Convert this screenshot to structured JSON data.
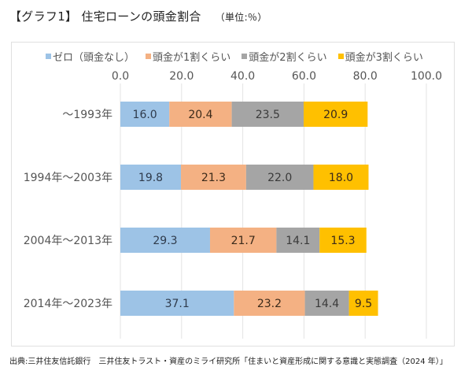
{
  "header": {
    "title": "【グラフ1】 住宅ローンの頭金割合",
    "unit": "（単位:％）"
  },
  "source": "出典:三井住友信託銀行　三井住友トラスト・資産のミライ研究所「住まいと資産形成に関する意識と実態調査（2024 年）」",
  "chart_data": {
    "type": "bar",
    "orientation": "horizontal",
    "stacked": true,
    "title": "【グラフ1】 住宅ローンの頭金割合",
    "unit_label": "（単位:％）",
    "xlabel": "",
    "ylabel": "",
    "xlim": [
      0,
      100
    ],
    "xticks": [
      0,
      20,
      40,
      60,
      80,
      100
    ],
    "xtick_labels": [
      "0.0",
      "20.0",
      "40.0",
      "60.0",
      "80.0",
      "100.0"
    ],
    "grid": true,
    "legend_position": "top",
    "categories": [
      "～1993年",
      "1994年～2003年",
      "2004年～2013年",
      "2014年～2023年"
    ],
    "series": [
      {
        "name": "ゼロ（頭金なし）",
        "color": "#9dc3e6",
        "values": [
          16.0,
          19.8,
          29.3,
          37.1
        ]
      },
      {
        "name": "頭金が1割くらい",
        "color": "#f4b183",
        "values": [
          20.4,
          21.3,
          21.7,
          23.2
        ]
      },
      {
        "name": "頭金が2割くらい",
        "color": "#a5a5a5",
        "values": [
          23.5,
          22.0,
          14.1,
          14.4
        ]
      },
      {
        "name": "頭金が3割くらい",
        "color": "#ffc000",
        "values": [
          20.9,
          18.0,
          15.3,
          9.5
        ]
      }
    ]
  }
}
